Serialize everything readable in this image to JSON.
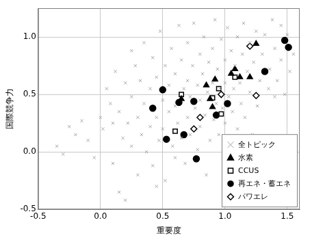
{
  "chart_data": {
    "type": "scatter",
    "x_label": "重要度",
    "y_label": "国際競争力",
    "xlim": [
      -0.5,
      1.6
    ],
    "ylim": [
      -0.5,
      1.25
    ],
    "xticks": [
      {
        "value": -0.5,
        "label": "-0.5"
      },
      {
        "value": 0,
        "label": "0.0"
      },
      {
        "value": 0.5,
        "label": "0.5"
      },
      {
        "value": 1,
        "label": "1.0"
      },
      {
        "value": 1.5,
        "label": "1.5"
      }
    ],
    "yticks": [
      {
        "value": -0.5,
        "label": "-0.5"
      },
      {
        "value": 0,
        "label": "0.0"
      },
      {
        "value": 0.5,
        "label": "0.5"
      },
      {
        "value": 1,
        "label": "1.0"
      }
    ],
    "grid": true,
    "legend": "lower right",
    "series": [
      {
        "name": "全トピック",
        "color": "#a6a6a6",
        "marker": "x",
        "x": [
          -0.35,
          -0.3,
          -0.25,
          -0.2,
          -0.15,
          -0.1,
          -0.05,
          0.0,
          0.02,
          0.05,
          0.08,
          0.1,
          0.1,
          0.12,
          0.15,
          0.15,
          0.18,
          0.2,
          0.2,
          0.22,
          0.25,
          0.25,
          0.25,
          0.28,
          0.3,
          0.3,
          0.32,
          0.33,
          0.35,
          0.35,
          0.37,
          0.4,
          0.4,
          0.42,
          0.42,
          0.45,
          0.45,
          0.45,
          0.47,
          0.48,
          0.5,
          0.5,
          0.52,
          0.52,
          0.55,
          0.55,
          0.57,
          0.58,
          0.6,
          0.6,
          0.6,
          0.62,
          0.63,
          0.65,
          0.65,
          0.67,
          0.68,
          0.7,
          0.7,
          0.7,
          0.72,
          0.72,
          0.74,
          0.75,
          0.76,
          0.78,
          0.78,
          0.8,
          0.8,
          0.8,
          0.82,
          0.83,
          0.84,
          0.85,
          0.86,
          0.87,
          0.88,
          0.9,
          0.9,
          0.91,
          0.92,
          0.93,
          0.94,
          0.95,
          0.96,
          0.97,
          0.98,
          1.0,
          1.0,
          1.0,
          1.02,
          1.03,
          1.04,
          1.05,
          1.06,
          1.07,
          1.08,
          1.1,
          1.1,
          1.12,
          1.13,
          1.14,
          1.15,
          1.16,
          1.18,
          1.2,
          1.2,
          1.22,
          1.23,
          1.25,
          1.26,
          1.28,
          1.3,
          1.32,
          1.35,
          1.36,
          1.38,
          1.4,
          1.4,
          1.42,
          1.45,
          1.45,
          1.48,
          1.5,
          1.52,
          1.55
        ],
        "values": [
          0.05,
          -0.02,
          0.22,
          0.15,
          0.27,
          0.1,
          -0.05,
          0.3,
          0.2,
          0.55,
          0.42,
          -0.1,
          0.25,
          0.7,
          0.35,
          -0.35,
          0.12,
          0.6,
          -0.42,
          0.25,
          0.48,
          0.05,
          0.88,
          0.75,
          0.3,
          -0.2,
          0.62,
          0.15,
          0.95,
          0.42,
          0.0,
          0.55,
          0.22,
          0.82,
          -0.12,
          0.65,
          0.3,
          -0.3,
          0.1,
          1.05,
          0.45,
          0.2,
          0.75,
          -0.25,
          0.58,
          0.35,
          0.9,
          0.05,
          0.68,
          0.4,
          -0.05,
          0.25,
          1.1,
          0.8,
          0.12,
          0.55,
          -0.1,
          0.95,
          0.62,
          0.3,
          0.48,
          0.15,
          0.75,
          1.12,
          0.38,
          0.58,
          0.02,
          0.85,
          0.45,
          0.22,
          0.68,
          1.0,
          0.32,
          -0.2,
          0.52,
          0.78,
          0.1,
          0.9,
          0.6,
          0.28,
          1.15,
          0.42,
          0.72,
          0.15,
          0.55,
          0.98,
          0.38,
          0.8,
          0.25,
          0.6,
          1.08,
          0.48,
          0.05,
          0.88,
          0.35,
          0.55,
          0.75,
          1.0,
          0.2,
          0.6,
          0.42,
          0.85,
          1.12,
          0.3,
          0.7,
          0.52,
          0.95,
          0.15,
          0.78,
          1.05,
          0.4,
          0.62,
          0.85,
          1.02,
          0.55,
          0.72,
          1.15,
          0.9,
          0.48,
          0.62,
          0.8,
          1.1,
          0.5,
          1.02,
          0.7,
          0.85
        ]
      },
      {
        "name": "水素",
        "color": "#000000",
        "marker": "triangle",
        "x": [
          0.65,
          0.85,
          0.88,
          0.9,
          0.92,
          1.05,
          1.08,
          1.12,
          1.2,
          1.25
        ],
        "values": [
          0.46,
          0.58,
          0.46,
          0.39,
          0.63,
          0.68,
          0.72,
          0.65,
          0.65,
          0.94
        ]
      },
      {
        "name": "CCUS",
        "color": "#000000",
        "marker": "square-open",
        "x": [
          0.6,
          0.65,
          0.9,
          0.95,
          0.97,
          1.08
        ],
        "values": [
          0.18,
          0.5,
          0.47,
          0.55,
          0.33,
          0.65
        ]
      },
      {
        "name": "再エネ・蓄エネ",
        "color": "#000000",
        "marker": "circle",
        "x": [
          0.42,
          0.5,
          0.53,
          0.63,
          0.67,
          0.75,
          0.77,
          0.93,
          1.02,
          1.32,
          1.48,
          1.51
        ],
        "values": [
          0.38,
          0.54,
          0.11,
          0.43,
          0.15,
          0.44,
          -0.06,
          0.32,
          0.42,
          0.7,
          0.97,
          0.91
        ]
      },
      {
        "name": "パワエレ",
        "color": "#000000",
        "marker": "diamond-open",
        "x": [
          0.75,
          0.8,
          0.97,
          1.2,
          1.25
        ],
        "values": [
          0.2,
          0.3,
          0.5,
          0.92,
          0.49
        ]
      }
    ]
  }
}
